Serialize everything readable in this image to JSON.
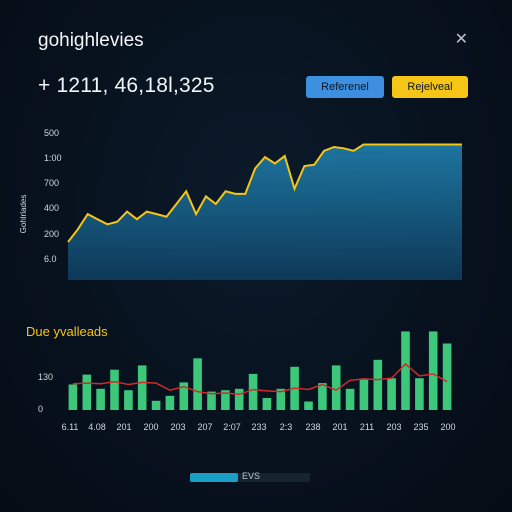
{
  "header": {
    "title": "gohighlevies",
    "close_icon": "close-icon",
    "metric": "+ 1211, 46,18l,325"
  },
  "buttons": {
    "blue_label": "Referenel",
    "yellow_label": "Rejelveal",
    "blue_color": "#3d8fe0",
    "yellow_color": "#f5c518"
  },
  "chart_data": [
    {
      "type": "area",
      "ylabel": "Gohlrlades",
      "y_tick_labels": [
        "500",
        "1:00",
        "700",
        "400",
        "200",
        "6.0"
      ],
      "x": [
        0,
        1,
        2,
        3,
        4,
        5,
        6,
        7,
        8,
        9,
        10,
        11,
        12,
        13,
        14,
        15,
        16,
        17,
        18,
        19,
        20,
        21,
        22,
        23,
        24,
        25,
        26,
        27,
        28,
        29,
        30,
        31,
        32,
        33,
        34,
        35,
        36,
        37,
        38,
        39,
        40
      ],
      "values": [
        1.5,
        2.0,
        2.6,
        2.4,
        2.2,
        2.3,
        2.7,
        2.4,
        2.7,
        2.6,
        2.5,
        3.0,
        3.5,
        2.6,
        3.3,
        3.0,
        3.5,
        3.4,
        3.4,
        4.4,
        4.85,
        4.6,
        4.9,
        3.6,
        4.5,
        4.55,
        5.1,
        5.25,
        5.2,
        5.1,
        5.35,
        5.35,
        5.35,
        5.35,
        5.35,
        5.35,
        5.35,
        5.35,
        5.35,
        5.35,
        5.35
      ],
      "ylim": [
        0,
        6
      ],
      "colors": {
        "line": "#f5c518",
        "fill": "#1a6f96"
      }
    },
    {
      "type": "bar",
      "title": "Due yvalleads",
      "y_tick_labels": [
        "130",
        "0"
      ],
      "x_tick_labels": [
        "6.11",
        "4.08",
        "201",
        "200",
        "203",
        "207",
        "2:07",
        "233",
        "2:3",
        "238",
        "201",
        "211",
        "203",
        "235",
        "200"
      ],
      "values": [
        36,
        50,
        30,
        57,
        28,
        63,
        13,
        20,
        39,
        73,
        26,
        28,
        30,
        51,
        17,
        30,
        61,
        12,
        38,
        63,
        30,
        44,
        71,
        45,
        111,
        45,
        111,
        94
      ],
      "line_values": [
        37,
        38,
        37,
        40,
        36,
        39,
        38,
        28,
        33,
        26,
        23,
        24,
        22,
        29,
        27,
        26,
        31,
        29,
        36,
        28,
        42,
        44,
        43,
        45,
        65,
        48,
        51,
        40
      ],
      "ylim": [
        0,
        130
      ],
      "colors": {
        "bars": "#3dc77a",
        "line": "#d02b2b"
      }
    }
  ],
  "legend": {
    "label": "EVS",
    "fill_fraction": 0.4,
    "color": "#1aa0c7"
  }
}
